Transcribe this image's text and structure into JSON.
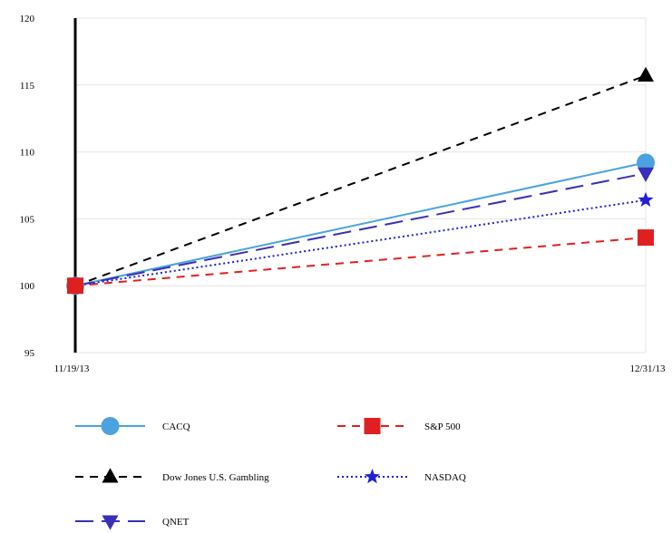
{
  "chart_data": {
    "type": "line",
    "title": "",
    "xlabel": "",
    "ylabel": "",
    "x": [
      "11/19/13",
      "12/31/13"
    ],
    "ylim": [
      95,
      120
    ],
    "yticks": [
      95,
      100,
      105,
      110,
      115,
      120
    ],
    "grid": true,
    "legend_position": "bottom",
    "series": [
      {
        "name": "CACQ",
        "values": [
          100,
          109.2
        ],
        "color": "#4aa3df",
        "dash": "solid",
        "marker": "circle"
      },
      {
        "name": "S&P 500",
        "values": [
          100,
          103.6
        ],
        "color": "#e02020",
        "dash": "dashed",
        "marker": "square"
      },
      {
        "name": "Dow Jones U.S. Gambling",
        "values": [
          100,
          115.7
        ],
        "color": "#000000",
        "dash": "dashed",
        "marker": "triangle-up"
      },
      {
        "name": "NASDAQ",
        "values": [
          100,
          106.4
        ],
        "color": "#1f1fd6",
        "dash": "dotted",
        "marker": "star"
      },
      {
        "name": "QNET",
        "values": [
          100,
          108.4
        ],
        "color": "#3a2fb8",
        "dash": "longdash",
        "marker": "triangle-down"
      }
    ]
  }
}
